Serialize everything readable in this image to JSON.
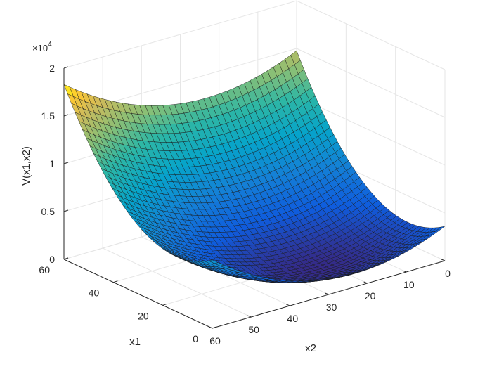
{
  "chart_data": {
    "type": "surface",
    "title": "",
    "xlabel": "x2",
    "ylabel": "x1",
    "zlabel": "V(x1,x2)",
    "xlim": [
      0,
      60
    ],
    "ylim": [
      0,
      60
    ],
    "zlim": [
      0,
      20000
    ],
    "x_ticks": [
      "0",
      "10",
      "20",
      "30",
      "40",
      "50",
      "60"
    ],
    "y_ticks": [
      "0",
      "20",
      "40",
      "60"
    ],
    "z_ticks": [
      "0",
      "0.5",
      "1",
      "1.5",
      "2"
    ],
    "z_exponent": {
      "base": "×10",
      "power": "4"
    },
    "grid": true,
    "colormap": "parula",
    "surface": {
      "description": "V(x1,x2) = a*(x1 - c1)^2 + b*(x2 - c2)^2",
      "a": 6.2,
      "b": 4.2,
      "c1": 15,
      "c2": 23,
      "grid_steps": 40
    }
  }
}
